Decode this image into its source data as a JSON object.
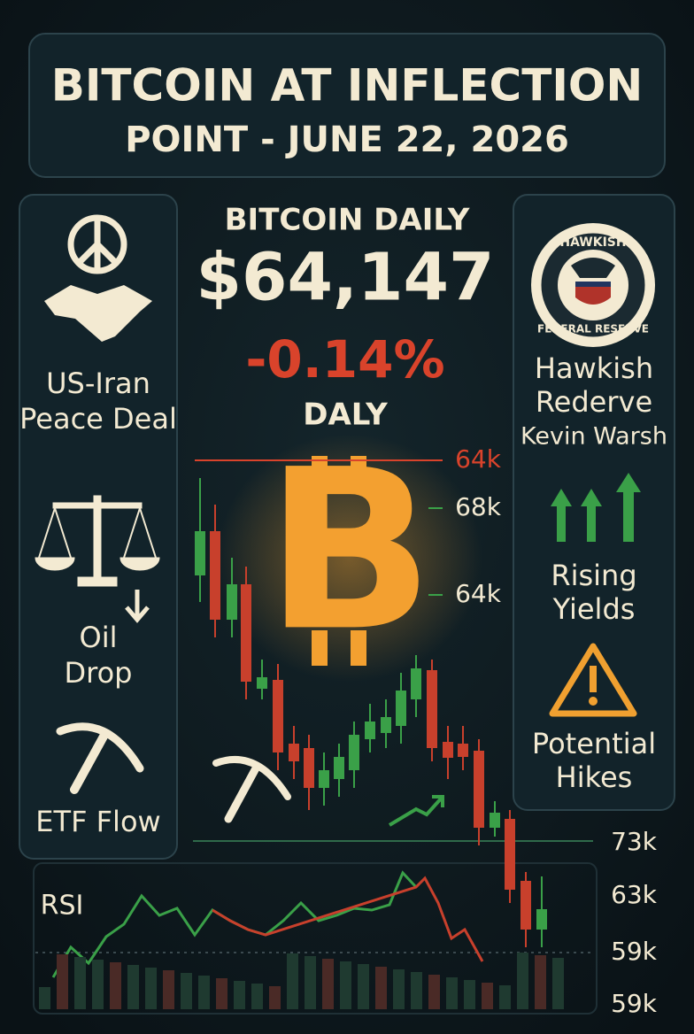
{
  "header": {
    "title_lines": [
      "BITCOIN AT INFLECTION",
      "POINT - JUNE 22, 2026"
    ]
  },
  "price": {
    "label": "BITCOIN DAILY",
    "value": "$64,147",
    "change": "-0.14%",
    "period": "DALY"
  },
  "left_panel": {
    "items": [
      {
        "lines": [
          "US-Iran",
          "Peace Deal"
        ]
      },
      {
        "lines": [
          "Oil",
          "Drop"
        ]
      },
      {
        "lines": [
          "ETF Flow"
        ]
      }
    ]
  },
  "right_panel": {
    "badge": {
      "top": "HAWKISH",
      "bottom": "FEDERAL RESERVE"
    },
    "items": [
      {
        "lines": [
          "Hawkish",
          "Rederve",
          "Kevin Warsh"
        ]
      },
      {
        "lines": [
          "Rising",
          "Yields"
        ]
      },
      {
        "lines": [
          "Potential",
          "Hikes"
        ]
      }
    ]
  },
  "chart": {
    "price_labels": [
      "64k",
      "68k",
      "64k",
      "73k",
      "63k",
      "59k",
      "59k"
    ],
    "rsi_label": "RSI"
  }
}
